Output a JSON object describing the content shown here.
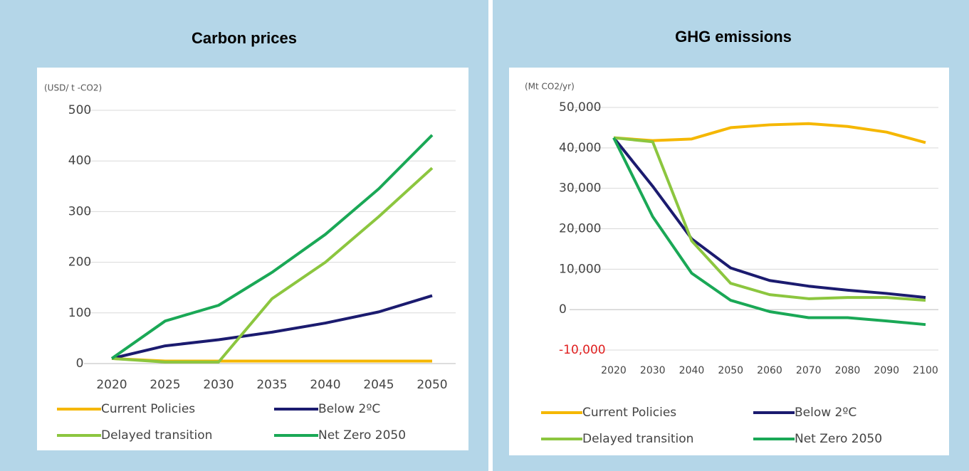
{
  "chart_data": [
    {
      "type": "line",
      "title": "Carbon prices",
      "unit_label": "(USD/ t -CO2)",
      "categories": [
        "2020",
        "2025",
        "2030",
        "2035",
        "2040",
        "2045",
        "2050"
      ],
      "ylim": [
        0,
        500
      ],
      "yticks": [
        0,
        100,
        200,
        300,
        400,
        500
      ],
      "grid": true,
      "series": [
        {
          "name": "Current Policies",
          "color": "#f5b700",
          "values": [
            10,
            5,
            5,
            5,
            5,
            5,
            5
          ]
        },
        {
          "name": "Below 2ºC",
          "color": "#1b1b6f",
          "values": [
            10,
            35,
            47,
            62,
            80,
            102,
            134
          ]
        },
        {
          "name": "Delayed transition",
          "color": "#8cc63f",
          "values": [
            10,
            3,
            3,
            128,
            200,
            290,
            386
          ]
        },
        {
          "name": "Net Zero 2050",
          "color": "#1aa856",
          "values": [
            10,
            84,
            115,
            180,
            255,
            345,
            451
          ]
        }
      ]
    },
    {
      "type": "line",
      "title": "GHG emissions",
      "unit_label": "(Mt CO2/yr)",
      "categories": [
        "2020",
        "2030",
        "2040",
        "2050",
        "2060",
        "2070",
        "2080",
        "2090",
        "2100"
      ],
      "ylim": [
        -10000,
        50000
      ],
      "yticks": [
        {
          "value": -10000,
          "label": "-10,000"
        },
        0,
        {
          "value": 10000,
          "label": "10,000"
        },
        {
          "value": 20000,
          "label": "20,000"
        },
        {
          "value": 30000,
          "label": "30,000"
        },
        {
          "value": 40000,
          "label": "40,000"
        },
        {
          "value": 50000,
          "label": "50,000"
        }
      ],
      "negative_tick_color": "#e02020",
      "grid": true,
      "series": [
        {
          "name": "Current Policies",
          "color": "#f5b700",
          "values": [
            42500,
            41800,
            42200,
            45000,
            45700,
            46000,
            45300,
            43900,
            41300
          ]
        },
        {
          "name": "Below 2ºC",
          "color": "#1b1b6f",
          "values": [
            42500,
            30500,
            17500,
            10300,
            7200,
            5800,
            4800,
            4000,
            3000
          ]
        },
        {
          "name": "Delayed transition",
          "color": "#8cc63f",
          "values": [
            42500,
            41500,
            17000,
            6500,
            3700,
            2700,
            3000,
            3000,
            2300
          ]
        },
        {
          "name": "Net Zero 2050",
          "color": "#1aa856",
          "values": [
            42500,
            23000,
            9000,
            2300,
            -500,
            -2000,
            -2000,
            -2800,
            -3700
          ]
        }
      ]
    }
  ]
}
